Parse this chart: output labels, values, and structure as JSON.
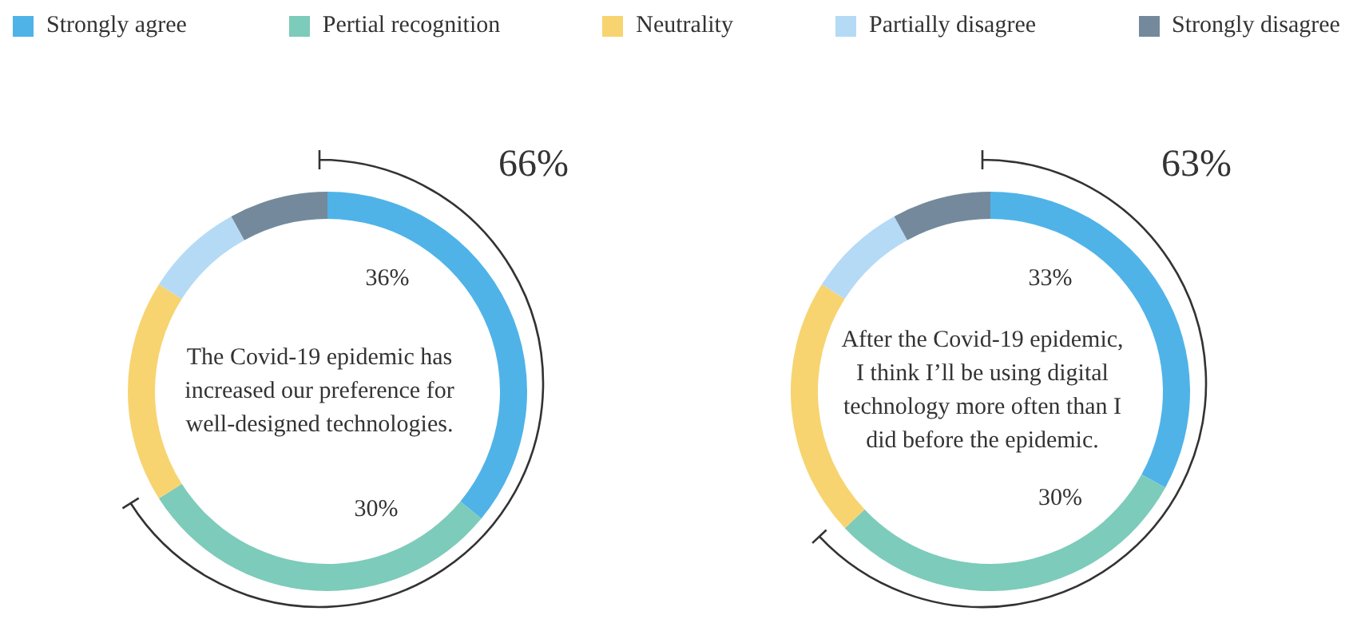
{
  "chart_data": [
    {
      "type": "donut",
      "title": "The Covid-19 epidemic has increased our preference for well-designed technologies.",
      "categories": [
        "Strongly agree",
        "Pertial recognition",
        "Neutrality",
        "Partially disagree",
        "Strongly disagree"
      ],
      "values": [
        36,
        30,
        18,
        8,
        8
      ],
      "colors": [
        "#4fb3e8",
        "#7dcbbb",
        "#f7d470",
        "#b5daf5",
        "#748a9c"
      ],
      "value_labels": [
        "36%",
        "30%",
        null,
        null,
        null
      ],
      "annotations": [
        "66%"
      ],
      "legend": "top"
    },
    {
      "type": "donut",
      "title": "After the Covid-19 epidemic, I think I’ll be using digital technology more often than I did before the epidemic.",
      "categories": [
        null,
        null,
        null,
        null,
        null
      ],
      "values": [
        33,
        30,
        21,
        8,
        8
      ],
      "colors": [
        "#4fb3e8",
        "#7dcbbb",
        "#f7d470",
        "#b5daf5",
        "#748a9c"
      ],
      "value_labels": [
        "33%",
        "30%",
        null,
        null,
        null
      ],
      "annotations": [
        "63%"
      ],
      "legend": false
    }
  ]
}
